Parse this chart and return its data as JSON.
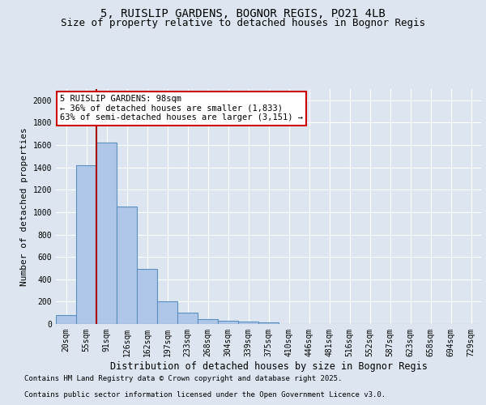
{
  "title1": "5, RUISLIP GARDENS, BOGNOR REGIS, PO21 4LB",
  "title2": "Size of property relative to detached houses in Bognor Regis",
  "xlabel": "Distribution of detached houses by size in Bognor Regis",
  "ylabel": "Number of detached properties",
  "bins": [
    "20sqm",
    "55sqm",
    "91sqm",
    "126sqm",
    "162sqm",
    "197sqm",
    "233sqm",
    "268sqm",
    "304sqm",
    "339sqm",
    "375sqm",
    "410sqm",
    "446sqm",
    "481sqm",
    "516sqm",
    "552sqm",
    "587sqm",
    "623sqm",
    "658sqm",
    "694sqm",
    "729sqm"
  ],
  "values": [
    80,
    1420,
    1620,
    1050,
    490,
    200,
    105,
    40,
    30,
    20,
    18,
    0,
    0,
    0,
    0,
    0,
    0,
    0,
    0,
    0,
    0
  ],
  "bar_color": "#aec6e8",
  "bar_edge_color": "#5a8fc0",
  "bar_edge_width": 0.8,
  "vline_color": "#aa0000",
  "annotation_text": "5 RUISLIP GARDENS: 98sqm\n← 36% of detached houses are smaller (1,833)\n63% of semi-detached houses are larger (3,151) →",
  "annotation_box_color": "#ffffff",
  "annotation_box_edge": "#cc0000",
  "ylim": [
    0,
    2100
  ],
  "yticks": [
    0,
    200,
    400,
    600,
    800,
    1000,
    1200,
    1400,
    1600,
    1800,
    2000
  ],
  "bg_color": "#dde6f0",
  "plot_bg_color": "#dde6f0",
  "footer1": "Contains HM Land Registry data © Crown copyright and database right 2025.",
  "footer2": "Contains public sector information licensed under the Open Government Licence v3.0.",
  "title_fontsize": 10,
  "subtitle_fontsize": 9,
  "tick_fontsize": 7,
  "ylabel_fontsize": 8,
  "xlabel_fontsize": 8.5,
  "footer_fontsize": 6.5,
  "annotation_fontsize": 7.5
}
